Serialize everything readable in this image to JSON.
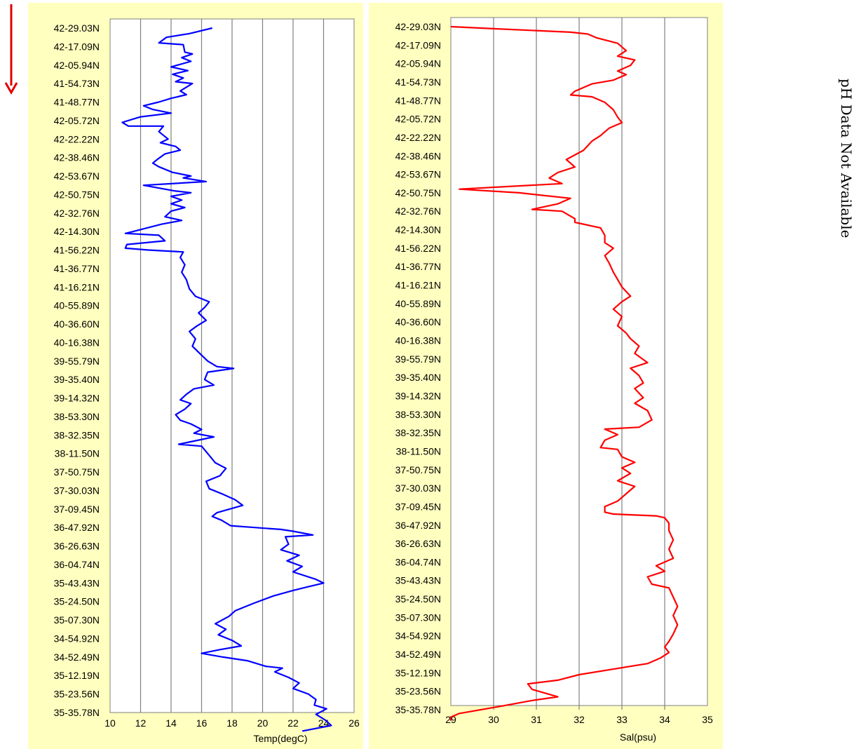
{
  "side_note": "pH Data Not Available",
  "colors": {
    "panel_bg": "#FFFFC0",
    "grid": "#808080",
    "temp_line": "#0000FF",
    "sal_line": "#FF0000",
    "arrow": "#E00000"
  },
  "direction_indicator": "down-arrow",
  "latitude_labels": [
    "42-29.03N",
    "42-17.09N",
    "42-05.94N",
    "41-54.73N",
    "41-48.77N",
    "42-05.72N",
    "42-22.22N",
    "42-38.46N",
    "42-53.67N",
    "42-50.75N",
    "42-32.76N",
    "42-14.30N",
    "41-56.22N",
    "41-36.77N",
    "41-16.21N",
    "40-55.89N",
    "40-36.60N",
    "40-16.38N",
    "39-55.79N",
    "39-35.40N",
    "39-14.32N",
    "38-53.30N",
    "38-32.35N",
    "38-11.50N",
    "37-50.75N",
    "37-30.03N",
    "37-09.45N",
    "36-47.92N",
    "36-26.63N",
    "36-04.74N",
    "35-43.43N",
    "35-24.50N",
    "35-07.30N",
    "34-54.92N",
    "34-52.49N",
    "35-12.19N",
    "35-23.56N",
    "35-35.78N"
  ],
  "chart_data": [
    {
      "type": "line",
      "orientation": "vertical-profile",
      "xlabel": "Temp(degC)",
      "xlim": [
        10,
        26
      ],
      "xticks": [
        "10",
        "12",
        "14",
        "16",
        "18",
        "20",
        "22",
        "24",
        "26"
      ],
      "grid": true,
      "series": [
        {
          "color": "#0000FF",
          "points": [
            [
              16.7,
              0
            ],
            [
              15.2,
              0.3
            ],
            [
              13.7,
              0.5
            ],
            [
              13.2,
              0.8
            ],
            [
              14.8,
              0.9
            ],
            [
              14.9,
              1.3
            ],
            [
              15.4,
              1.4
            ],
            [
              14.7,
              1.6
            ],
            [
              15.3,
              1.8
            ],
            [
              14.0,
              2.1
            ],
            [
              15.1,
              2.3
            ],
            [
              14.1,
              2.5
            ],
            [
              14.8,
              2.7
            ],
            [
              14.3,
              2.9
            ],
            [
              15.4,
              3.0
            ],
            [
              14.6,
              3.4
            ],
            [
              15.0,
              3.6
            ],
            [
              14.0,
              3.8
            ],
            [
              13.2,
              4.0
            ],
            [
              12.2,
              4.2
            ],
            [
              12.8,
              4.4
            ],
            [
              14.0,
              4.6
            ],
            [
              12.0,
              4.8
            ],
            [
              10.8,
              5.1
            ],
            [
              11.2,
              5.3
            ],
            [
              13.5,
              5.3
            ],
            [
              13.2,
              5.6
            ],
            [
              13.8,
              6.0
            ],
            [
              13.3,
              6.2
            ],
            [
              14.3,
              6.4
            ],
            [
              14.6,
              6.6
            ],
            [
              13.6,
              6.8
            ],
            [
              13.1,
              7.1
            ],
            [
              12.8,
              7.3
            ],
            [
              13.2,
              7.5
            ],
            [
              14.1,
              7.8
            ],
            [
              15.3,
              8.0
            ],
            [
              14.8,
              8.1
            ],
            [
              16.3,
              8.3
            ],
            [
              12.2,
              8.5
            ],
            [
              14.2,
              8.8
            ],
            [
              15.3,
              8.9
            ],
            [
              14.0,
              9.1
            ],
            [
              14.7,
              9.3
            ],
            [
              14.0,
              9.5
            ],
            [
              14.9,
              9.7
            ],
            [
              14.0,
              9.9
            ],
            [
              13.6,
              10.2
            ],
            [
              14.7,
              10.4
            ],
            [
              13.4,
              10.6
            ],
            [
              11.5,
              11.0
            ],
            [
              11.0,
              11.1
            ],
            [
              13.2,
              11.2
            ],
            [
              13.6,
              11.5
            ],
            [
              11.1,
              11.7
            ],
            [
              11.0,
              11.9
            ],
            [
              12.5,
              12.0
            ],
            [
              14.8,
              12.1
            ],
            [
              14.6,
              12.4
            ],
            [
              14.9,
              12.8
            ],
            [
              14.7,
              13.2
            ],
            [
              15.0,
              13.6
            ],
            [
              15.2,
              14.1
            ],
            [
              15.6,
              14.5
            ],
            [
              16.5,
              14.8
            ],
            [
              16.2,
              15.1
            ],
            [
              15.8,
              15.4
            ],
            [
              16.3,
              15.8
            ],
            [
              15.7,
              16.1
            ],
            [
              15.2,
              16.4
            ],
            [
              15.6,
              16.8
            ],
            [
              15.4,
              17.2
            ],
            [
              15.9,
              17.6
            ],
            [
              16.4,
              18.0
            ],
            [
              17.0,
              18.3
            ],
            [
              18.1,
              18.4
            ],
            [
              16.4,
              18.6
            ],
            [
              16.2,
              19.0
            ],
            [
              16.8,
              19.3
            ],
            [
              15.5,
              19.5
            ],
            [
              15.0,
              19.8
            ],
            [
              14.6,
              20.1
            ],
            [
              15.3,
              20.3
            ],
            [
              14.9,
              20.6
            ],
            [
              14.3,
              20.9
            ],
            [
              14.6,
              21.2
            ],
            [
              15.3,
              21.4
            ],
            [
              16.0,
              21.7
            ],
            [
              15.5,
              21.9
            ],
            [
              16.8,
              22.1
            ],
            [
              14.5,
              22.5
            ],
            [
              16.0,
              22.6
            ],
            [
              16.5,
              23.1
            ],
            [
              16.9,
              23.5
            ],
            [
              17.6,
              23.8
            ],
            [
              17.2,
              24.2
            ],
            [
              16.3,
              24.5
            ],
            [
              16.5,
              24.9
            ],
            [
              17.4,
              25.2
            ],
            [
              18.2,
              25.5
            ],
            [
              18.7,
              25.8
            ],
            [
              17.0,
              26.2
            ],
            [
              16.7,
              26.4
            ],
            [
              17.3,
              26.6
            ],
            [
              17.9,
              26.9
            ],
            [
              19.5,
              27.0
            ],
            [
              21.2,
              27.1
            ],
            [
              22.0,
              27.2
            ],
            [
              23.3,
              27.4
            ],
            [
              21.5,
              27.5
            ],
            [
              21.7,
              27.9
            ],
            [
              21.2,
              28.2
            ],
            [
              22.4,
              28.5
            ],
            [
              21.6,
              28.8
            ],
            [
              22.6,
              29.1
            ],
            [
              22.0,
              29.4
            ],
            [
              23.5,
              29.8
            ],
            [
              24.0,
              30.0
            ],
            [
              23.0,
              30.2
            ],
            [
              22.0,
              30.4
            ],
            [
              20.7,
              30.7
            ],
            [
              19.4,
              31.1
            ],
            [
              18.2,
              31.5
            ],
            [
              17.8,
              31.8
            ],
            [
              16.9,
              32.2
            ],
            [
              17.6,
              32.5
            ],
            [
              17.1,
              32.8
            ],
            [
              18.0,
              33.1
            ],
            [
              18.6,
              33.4
            ],
            [
              17.2,
              33.6
            ],
            [
              16.0,
              33.8
            ],
            [
              17.4,
              34.0
            ],
            [
              19.0,
              34.2
            ],
            [
              20.2,
              34.5
            ],
            [
              21.3,
              34.6
            ],
            [
              20.8,
              34.8
            ],
            [
              21.7,
              35.1
            ],
            [
              22.4,
              35.4
            ],
            [
              22.0,
              35.7
            ],
            [
              23.0,
              36.0
            ],
            [
              23.5,
              36.3
            ],
            [
              23.4,
              36.6
            ],
            [
              24.2,
              36.8
            ],
            [
              23.5,
              37.1
            ],
            [
              24.1,
              37.4
            ],
            [
              24.5,
              37.7
            ],
            [
              22.6,
              38.0
            ]
          ]
        }
      ]
    },
    {
      "type": "line",
      "orientation": "vertical-profile",
      "xlabel": "Sal(psu)",
      "xlim": [
        29,
        35
      ],
      "xticks": [
        "29",
        "30",
        "31",
        "32",
        "33",
        "34",
        "35"
      ],
      "grid": true,
      "series": [
        {
          "color": "#FF0000",
          "points": [
            [
              29.0,
              0
            ],
            [
              29.9,
              0.1
            ],
            [
              31.8,
              0.3
            ],
            [
              32.2,
              0.4
            ],
            [
              32.4,
              0.6
            ],
            [
              32.9,
              0.9
            ],
            [
              33.1,
              1.3
            ],
            [
              32.9,
              1.6
            ],
            [
              33.3,
              1.8
            ],
            [
              33.2,
              2.1
            ],
            [
              32.9,
              2.4
            ],
            [
              33.1,
              2.6
            ],
            [
              32.8,
              2.9
            ],
            [
              32.3,
              3.1
            ],
            [
              31.9,
              3.5
            ],
            [
              31.8,
              3.7
            ],
            [
              32.3,
              3.8
            ],
            [
              32.6,
              4.1
            ],
            [
              32.8,
              4.5
            ],
            [
              32.9,
              4.9
            ],
            [
              33.0,
              5.2
            ],
            [
              32.7,
              5.5
            ],
            [
              32.5,
              5.9
            ],
            [
              32.3,
              6.2
            ],
            [
              32.1,
              6.7
            ],
            [
              31.7,
              7.2
            ],
            [
              31.9,
              7.6
            ],
            [
              31.5,
              7.9
            ],
            [
              31.3,
              8.2
            ],
            [
              31.6,
              8.5
            ],
            [
              29.2,
              8.8
            ],
            [
              30.6,
              9.0
            ],
            [
              31.0,
              9.1
            ],
            [
              31.8,
              9.3
            ],
            [
              31.5,
              9.6
            ],
            [
              30.9,
              9.9
            ],
            [
              31.6,
              10.0
            ],
            [
              31.9,
              10.4
            ],
            [
              31.9,
              10.6
            ],
            [
              32.5,
              10.9
            ],
            [
              32.6,
              11.3
            ],
            [
              32.6,
              11.7
            ],
            [
              32.8,
              12.0
            ],
            [
              32.6,
              12.4
            ],
            [
              32.7,
              12.8
            ],
            [
              32.8,
              13.3
            ],
            [
              32.9,
              13.7
            ],
            [
              33.0,
              14.1
            ],
            [
              33.2,
              14.6
            ],
            [
              33.0,
              14.9
            ],
            [
              32.8,
              15.3
            ],
            [
              33.0,
              15.7
            ],
            [
              32.9,
              16.2
            ],
            [
              33.1,
              16.6
            ],
            [
              33.2,
              16.9
            ],
            [
              33.4,
              17.3
            ],
            [
              33.3,
              17.7
            ],
            [
              33.6,
              18.2
            ],
            [
              33.2,
              18.5
            ],
            [
              33.4,
              18.9
            ],
            [
              33.5,
              19.3
            ],
            [
              33.3,
              19.6
            ],
            [
              33.5,
              20.1
            ],
            [
              33.3,
              20.4
            ],
            [
              33.6,
              20.8
            ],
            [
              33.7,
              21.3
            ],
            [
              33.4,
              21.7
            ],
            [
              32.6,
              21.8
            ],
            [
              32.9,
              22.1
            ],
            [
              32.6,
              22.4
            ],
            [
              32.5,
              22.8
            ],
            [
              32.9,
              22.9
            ],
            [
              33.0,
              23.3
            ],
            [
              33.3,
              23.6
            ],
            [
              33.0,
              23.9
            ],
            [
              33.2,
              24.2
            ],
            [
              32.9,
              24.6
            ],
            [
              33.3,
              24.9
            ],
            [
              33.1,
              25.3
            ],
            [
              32.9,
              25.7
            ],
            [
              32.6,
              26.0
            ],
            [
              32.6,
              26.3
            ],
            [
              32.8,
              26.4
            ],
            [
              33.8,
              26.5
            ],
            [
              34.0,
              26.6
            ],
            [
              34.1,
              26.9
            ],
            [
              34.1,
              27.3
            ],
            [
              34.2,
              27.8
            ],
            [
              34.1,
              28.3
            ],
            [
              34.2,
              28.8
            ],
            [
              33.8,
              29.2
            ],
            [
              34.0,
              29.5
            ],
            [
              33.6,
              29.8
            ],
            [
              33.7,
              30.2
            ],
            [
              34.1,
              30.4
            ],
            [
              34.2,
              30.9
            ],
            [
              34.3,
              31.4
            ],
            [
              34.2,
              31.9
            ],
            [
              34.3,
              32.4
            ],
            [
              34.2,
              32.9
            ],
            [
              34.1,
              33.3
            ],
            [
              34.0,
              33.6
            ],
            [
              34.1,
              33.9
            ],
            [
              33.9,
              34.2
            ],
            [
              33.6,
              34.5
            ],
            [
              32.8,
              34.8
            ],
            [
              32.0,
              35.1
            ],
            [
              31.5,
              35.4
            ],
            [
              30.8,
              35.6
            ],
            [
              30.9,
              35.9
            ],
            [
              31.5,
              36.3
            ],
            [
              30.9,
              36.5
            ],
            [
              30.2,
              36.8
            ],
            [
              29.2,
              37.2
            ],
            [
              29.0,
              37.4
            ],
            [
              29.0,
              37.6
            ]
          ]
        }
      ]
    }
  ]
}
